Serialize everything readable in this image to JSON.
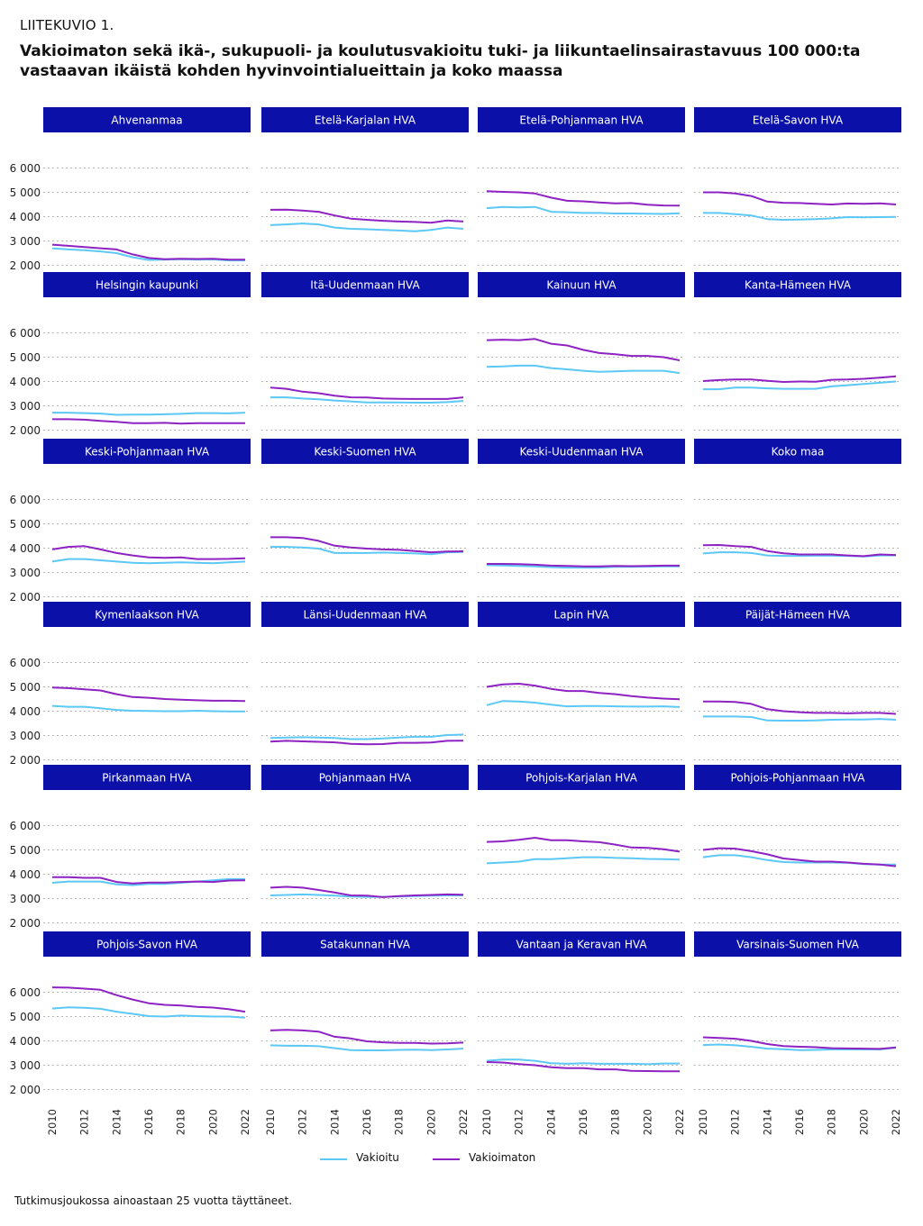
{
  "header": {
    "label": "LIITEKUVIO 1.",
    "title": "Vakioimaton sekä ikä-, sukupuoli- ja koulutusvakioitu tuki- ja liikuntaelinsairastavuus 100 000:ta vastaavan ikäistä kohden hyvinvointialueittain ja koko maassa"
  },
  "footnote": "Tutkimusjoukossa ainoastaan 25 vuotta täyttäneet.",
  "colors": {
    "panel_header": "#0a10a8",
    "panel_header_text": "#ffffff",
    "vakioitu": "#5cc8f5",
    "vakioimaton": "#8e22c2",
    "grid": "#b5b5b5"
  },
  "legend": [
    {
      "name": "Vakioitu",
      "color": "#5cc8f5"
    },
    {
      "name": "Vakioimaton",
      "color": "#8e22c2"
    }
  ],
  "chart_data": {
    "type": "line",
    "x": [
      2010,
      2011,
      2012,
      2013,
      2014,
      2015,
      2016,
      2017,
      2018,
      2019,
      2020,
      2021,
      2022
    ],
    "x_tick_labels": [
      "2010",
      "2012",
      "2014",
      "2016",
      "2018",
      "2020",
      "2022"
    ],
    "ylim": [
      1500,
      6500
    ],
    "y_ticks": [
      2000,
      3000,
      4000,
      5000,
      6000
    ],
    "y_tick_labels": [
      "2 000",
      "3 000",
      "4 000",
      "5 000",
      "6 000"
    ],
    "grid": true,
    "legend_position": "bottom",
    "series_names": [
      "Vakioitu",
      "Vakioimaton"
    ],
    "panels": [
      {
        "title": "Ahvenanmaa",
        "vakioitu": [
          2700,
          2650,
          2620,
          2570,
          2500,
          2330,
          2220,
          2230,
          2250,
          2230,
          2240,
          2200,
          2200
        ],
        "vakioimaton": [
          2850,
          2800,
          2750,
          2700,
          2650,
          2450,
          2300,
          2250,
          2270,
          2260,
          2270,
          2230,
          2230
        ]
      },
      {
        "title": "Etelä-Karjalan HVA",
        "vakioitu": [
          3650,
          3680,
          3720,
          3680,
          3550,
          3500,
          3480,
          3450,
          3430,
          3400,
          3450,
          3550,
          3500
        ],
        "vakioimaton": [
          4280,
          4290,
          4250,
          4200,
          4050,
          3920,
          3870,
          3830,
          3800,
          3780,
          3750,
          3840,
          3800
        ]
      },
      {
        "title": "Etelä-Pohjanmaan HVA",
        "vakioitu": [
          4350,
          4400,
          4380,
          4400,
          4200,
          4180,
          4150,
          4150,
          4130,
          4130,
          4120,
          4110,
          4140
        ],
        "vakioimaton": [
          5050,
          5020,
          5000,
          4950,
          4780,
          4650,
          4630,
          4580,
          4550,
          4560,
          4490,
          4460,
          4450
        ]
      },
      {
        "title": "Etelä-Savon HVA",
        "vakioitu": [
          4150,
          4150,
          4100,
          4050,
          3900,
          3870,
          3880,
          3900,
          3930,
          3980,
          3970,
          3980,
          3990
        ],
        "vakioimaton": [
          5000,
          5000,
          4950,
          4850,
          4620,
          4570,
          4560,
          4530,
          4500,
          4540,
          4530,
          4550,
          4500
        ]
      },
      {
        "title": "Helsingin kaupunki",
        "vakioitu": [
          2720,
          2720,
          2700,
          2680,
          2630,
          2640,
          2640,
          2650,
          2670,
          2700,
          2700,
          2690,
          2720
        ],
        "vakioimaton": [
          2450,
          2450,
          2430,
          2380,
          2340,
          2290,
          2290,
          2300,
          2270,
          2290,
          2290,
          2290,
          2290
        ]
      },
      {
        "title": "Itä-Uudenmaan HVA",
        "vakioitu": [
          3350,
          3350,
          3300,
          3270,
          3220,
          3180,
          3140,
          3140,
          3140,
          3130,
          3130,
          3150,
          3200
        ],
        "vakioimaton": [
          3750,
          3700,
          3580,
          3520,
          3420,
          3350,
          3340,
          3300,
          3290,
          3280,
          3280,
          3280,
          3350
        ]
      },
      {
        "title": "Kainuun HVA",
        "vakioitu": [
          4600,
          4620,
          4650,
          4650,
          4550,
          4500,
          4440,
          4400,
          4420,
          4440,
          4440,
          4440,
          4350
        ],
        "vakioimaton": [
          5700,
          5720,
          5700,
          5750,
          5550,
          5480,
          5300,
          5170,
          5120,
          5050,
          5050,
          5000,
          4870
        ]
      },
      {
        "title": "Kanta-Hämeen HVA",
        "vakioitu": [
          3680,
          3680,
          3750,
          3750,
          3720,
          3700,
          3700,
          3700,
          3800,
          3850,
          3900,
          3950,
          4000
        ],
        "vakioimaton": [
          4020,
          4060,
          4080,
          4080,
          4030,
          3980,
          4000,
          3990,
          4070,
          4080,
          4110,
          4160,
          4210
        ]
      },
      {
        "title": "Keski-Pohjanmaan HVA",
        "vakioitu": [
          3450,
          3550,
          3550,
          3500,
          3450,
          3400,
          3380,
          3400,
          3420,
          3400,
          3380,
          3420,
          3450
        ],
        "vakioimaton": [
          3950,
          4050,
          4080,
          3950,
          3800,
          3700,
          3620,
          3600,
          3620,
          3550,
          3550,
          3560,
          3580
        ]
      },
      {
        "title": "Keski-Suomen HVA",
        "vakioitu": [
          4050,
          4050,
          4030,
          3980,
          3800,
          3800,
          3800,
          3820,
          3800,
          3780,
          3750,
          3830,
          3840
        ],
        "vakioimaton": [
          4450,
          4450,
          4420,
          4300,
          4100,
          4030,
          3980,
          3950,
          3930,
          3880,
          3830,
          3860,
          3870
        ]
      },
      {
        "title": "Keski-Uudenmaan HVA",
        "vakioitu": [
          3300,
          3290,
          3270,
          3250,
          3220,
          3200,
          3200,
          3200,
          3230,
          3230,
          3240,
          3250,
          3250
        ],
        "vakioimaton": [
          3350,
          3350,
          3340,
          3320,
          3280,
          3270,
          3250,
          3250,
          3270,
          3260,
          3270,
          3280,
          3280
        ]
      },
      {
        "title": "Koko maa",
        "vakioitu": [
          3780,
          3830,
          3830,
          3800,
          3700,
          3680,
          3680,
          3690,
          3690,
          3680,
          3660,
          3700,
          3700
        ],
        "vakioimaton": [
          4120,
          4130,
          4080,
          4050,
          3880,
          3790,
          3740,
          3740,
          3740,
          3700,
          3670,
          3740,
          3720
        ]
      },
      {
        "title": "Kymenlaakson HVA",
        "vakioitu": [
          4220,
          4180,
          4180,
          4120,
          4050,
          4020,
          4010,
          4000,
          4000,
          4020,
          4000,
          3990,
          3990
        ],
        "vakioimaton": [
          4970,
          4950,
          4900,
          4850,
          4700,
          4580,
          4550,
          4500,
          4470,
          4450,
          4430,
          4430,
          4420
        ]
      },
      {
        "title": "Länsi-Uudenmaan HVA",
        "vakioitu": [
          2900,
          2920,
          2930,
          2920,
          2900,
          2850,
          2850,
          2880,
          2920,
          2950,
          2950,
          3020,
          3040
        ],
        "vakioimaton": [
          2750,
          2780,
          2760,
          2740,
          2720,
          2660,
          2640,
          2650,
          2700,
          2700,
          2710,
          2780,
          2790
        ]
      },
      {
        "title": "Lapin HVA",
        "vakioitu": [
          4250,
          4420,
          4400,
          4350,
          4270,
          4200,
          4210,
          4210,
          4200,
          4190,
          4190,
          4200,
          4170
        ],
        "vakioimaton": [
          5000,
          5100,
          5130,
          5050,
          4920,
          4830,
          4830,
          4750,
          4700,
          4620,
          4560,
          4520,
          4490
        ]
      },
      {
        "title": "Päijät-Hämeen HVA",
        "vakioitu": [
          3780,
          3780,
          3780,
          3760,
          3620,
          3610,
          3610,
          3620,
          3650,
          3660,
          3660,
          3680,
          3650
        ],
        "vakioimaton": [
          4400,
          4400,
          4380,
          4300,
          4080,
          4000,
          3960,
          3930,
          3930,
          3910,
          3930,
          3930,
          3890
        ]
      },
      {
        "title": "Pirkanmaan HVA",
        "vakioitu": [
          3650,
          3700,
          3700,
          3700,
          3580,
          3550,
          3600,
          3600,
          3650,
          3700,
          3750,
          3800,
          3800
        ],
        "vakioimaton": [
          3880,
          3880,
          3850,
          3850,
          3680,
          3620,
          3660,
          3660,
          3680,
          3700,
          3680,
          3740,
          3750
        ]
      },
      {
        "title": "Pohjanmaan HVA",
        "vakioitu": [
          3130,
          3150,
          3170,
          3150,
          3120,
          3080,
          3070,
          3070,
          3080,
          3100,
          3120,
          3130,
          3130
        ],
        "vakioimaton": [
          3450,
          3480,
          3450,
          3350,
          3250,
          3130,
          3120,
          3060,
          3100,
          3130,
          3150,
          3170,
          3160
        ]
      },
      {
        "title": "Pohjois-Karjalan HVA",
        "vakioitu": [
          4450,
          4480,
          4520,
          4620,
          4620,
          4660,
          4700,
          4700,
          4670,
          4660,
          4630,
          4620,
          4600
        ],
        "vakioimaton": [
          5330,
          5350,
          5420,
          5500,
          5400,
          5400,
          5350,
          5320,
          5220,
          5100,
          5080,
          5030,
          4930
        ]
      },
      {
        "title": "Pohjois-Pohjanmaan HVA",
        "vakioitu": [
          4700,
          4780,
          4780,
          4700,
          4580,
          4500,
          4480,
          4480,
          4480,
          4470,
          4420,
          4400,
          4400
        ],
        "vakioimaton": [
          5000,
          5070,
          5050,
          4950,
          4820,
          4650,
          4580,
          4520,
          4520,
          4480,
          4430,
          4400,
          4330
        ]
      },
      {
        "title": "Pohjois-Savon HVA",
        "vakioitu": [
          5330,
          5380,
          5360,
          5320,
          5200,
          5110,
          5020,
          5000,
          5040,
          5020,
          5000,
          5000,
          4950
        ],
        "vakioimaton": [
          6200,
          6190,
          6150,
          6100,
          5880,
          5700,
          5550,
          5480,
          5450,
          5400,
          5370,
          5300,
          5200
        ]
      },
      {
        "title": "Satakunnan HVA",
        "vakioitu": [
          3820,
          3800,
          3800,
          3780,
          3700,
          3620,
          3610,
          3610,
          3630,
          3640,
          3620,
          3650,
          3680
        ],
        "vakioimaton": [
          4430,
          4450,
          4430,
          4380,
          4170,
          4100,
          3980,
          3940,
          3920,
          3920,
          3890,
          3900,
          3930
        ]
      },
      {
        "title": "Vantaan ja Keravan HVA",
        "vakioitu": [
          3180,
          3230,
          3230,
          3180,
          3080,
          3060,
          3080,
          3060,
          3060,
          3060,
          3040,
          3070,
          3070
        ],
        "vakioimaton": [
          3130,
          3110,
          3050,
          3000,
          2920,
          2880,
          2880,
          2830,
          2830,
          2770,
          2760,
          2750,
          2750
        ]
      },
      {
        "title": "Varsinais-Suomen HVA",
        "vakioitu": [
          3830,
          3850,
          3820,
          3760,
          3680,
          3660,
          3620,
          3630,
          3650,
          3650,
          3650,
          3650,
          3720
        ],
        "vakioimaton": [
          4150,
          4120,
          4090,
          4000,
          3870,
          3790,
          3760,
          3740,
          3700,
          3690,
          3680,
          3670,
          3730
        ]
      }
    ]
  }
}
